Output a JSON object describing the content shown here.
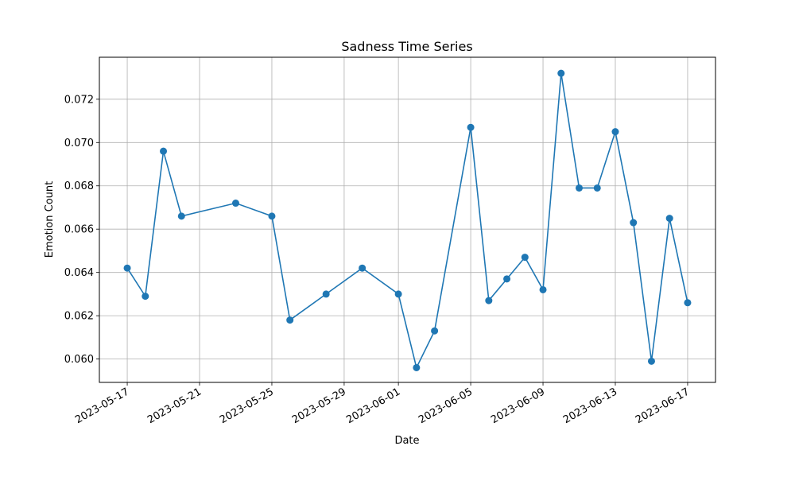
{
  "chart_data": {
    "type": "line",
    "title": "Sadness Time Series",
    "xlabel": "Date",
    "ylabel": "Emotion Count",
    "grid": true,
    "color": "#1f77b4",
    "xlim": [
      "2023-05-15 11:00",
      "2023-06-18 13:00"
    ],
    "ylim": [
      0.05892,
      0.07394
    ],
    "x_ticks": [
      "2023-05-17",
      "2023-05-21",
      "2023-05-25",
      "2023-05-29",
      "2023-06-01",
      "2023-06-05",
      "2023-06-09",
      "2023-06-13",
      "2023-06-17"
    ],
    "y_ticks": [
      0.06,
      0.062,
      0.064,
      0.066,
      0.068,
      0.07,
      0.072
    ],
    "y_tick_labels": [
      "0.060",
      "0.062",
      "0.064",
      "0.066",
      "0.068",
      "0.070",
      "0.072"
    ],
    "series": [
      {
        "x": [
          "2023-05-17",
          "2023-05-18",
          "2023-05-19",
          "2023-05-20",
          "2023-05-23",
          "2023-05-25",
          "2023-05-26",
          "2023-05-28",
          "2023-05-30",
          "2023-06-01",
          "2023-06-02",
          "2023-06-03",
          "2023-06-05",
          "2023-06-06",
          "2023-06-07",
          "2023-06-08",
          "2023-06-09",
          "2023-06-10",
          "2023-06-11",
          "2023-06-12",
          "2023-06-13",
          "2023-06-14",
          "2023-06-15",
          "2023-06-16",
          "2023-06-17"
        ],
        "y": [
          0.0642,
          0.0629,
          0.0696,
          0.0666,
          0.0672,
          0.0666,
          0.0618,
          0.063,
          0.0642,
          0.063,
          0.0596,
          0.0613,
          0.0707,
          0.0627,
          0.0637,
          0.0647,
          0.0632,
          0.0732,
          0.0679,
          0.0679,
          0.0705,
          0.0663,
          0.0599,
          0.0665,
          0.0626
        ]
      }
    ]
  }
}
